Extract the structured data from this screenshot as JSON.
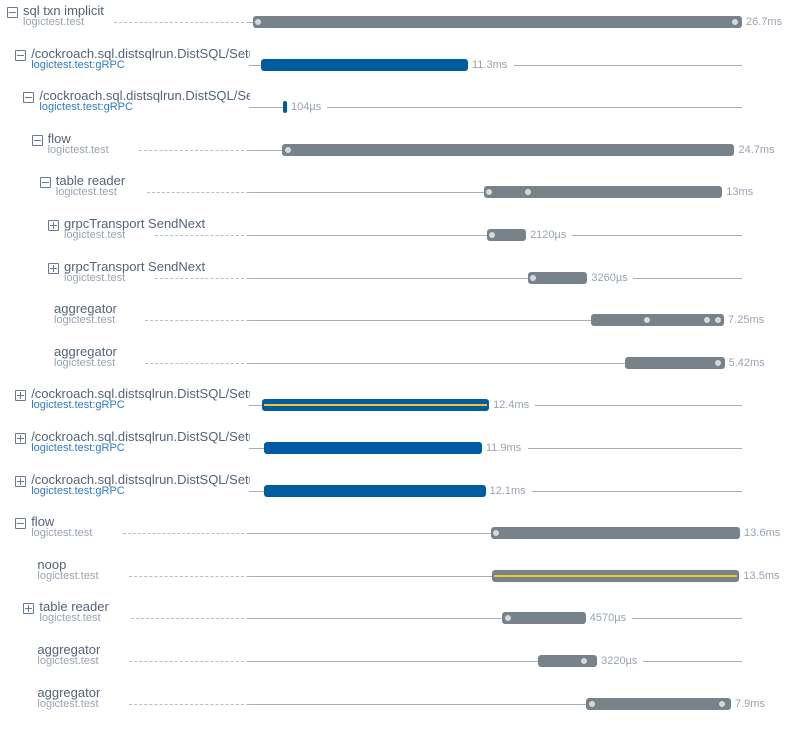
{
  "trace": {
    "total_ms": 26.7,
    "colors": {
      "grey": "#78828b",
      "blue": "#005ba1",
      "yellow": "#f2c41c"
    },
    "spans": [
      {
        "depth": 0,
        "toggle": "collapse",
        "title": "sql txn implicit",
        "subtitle": "logictest.test",
        "sub_style": "grey",
        "start_ms": 0,
        "duration_ms": 26.7,
        "label": "26.7ms",
        "color": "grey",
        "marks_ms": [
          0.3,
          26.3
        ]
      },
      {
        "depth": 1,
        "toggle": "collapse",
        "title": "/cockroach.sql.distsqlrun.DistSQL/SetupFlow",
        "subtitle": "logictest.test:gRPC",
        "sub_style": "blue",
        "start_ms": 0.44,
        "duration_ms": 11.3,
        "label": "11.3ms",
        "color": "blue",
        "marks_ms": []
      },
      {
        "depth": 2,
        "toggle": "collapse",
        "title": "/cockroach.sql.distsqlrun.DistSQL/SetupFlow",
        "subtitle": "logictest.test:gRPC",
        "sub_style": "blue",
        "start_ms": 1.64,
        "duration_ms": 0.104,
        "label": "104µs",
        "color": "blue",
        "marks_ms": []
      },
      {
        "depth": 3,
        "toggle": "collapse",
        "title": "flow",
        "subtitle": "logictest.test",
        "sub_style": "grey",
        "start_ms": 1.59,
        "duration_ms": 24.7,
        "label": "24.7ms",
        "color": "grey",
        "marks_ms": [
          1.9
        ]
      },
      {
        "depth": 4,
        "toggle": "collapse",
        "title": "table reader",
        "subtitle": "logictest.test",
        "sub_style": "grey",
        "start_ms": 12.62,
        "duration_ms": 13,
        "label": "13ms",
        "color": "grey",
        "marks_ms": [
          12.9,
          15.0
        ]
      },
      {
        "depth": 5,
        "toggle": "expand",
        "title": "grpcTransport SendNext",
        "subtitle": "logictest.test",
        "sub_style": "grey",
        "start_ms": 12.79,
        "duration_ms": 2.12,
        "label": "2120µs",
        "color": "grey",
        "marks_ms": [
          13.0
        ]
      },
      {
        "depth": 5,
        "toggle": "expand",
        "title": "grpcTransport SendNext",
        "subtitle": "logictest.test",
        "sub_style": "grey",
        "start_ms": 15.0,
        "duration_ms": 3.26,
        "label": "3260µs",
        "color": "grey",
        "marks_ms": [
          15.2
        ]
      },
      {
        "depth": 5,
        "toggle": "none",
        "title": "aggregator",
        "subtitle": "logictest.test",
        "sub_style": "grey",
        "start_ms": 18.47,
        "duration_ms": 7.25,
        "label": "7.25ms",
        "color": "grey",
        "marks_ms": [
          21.5,
          24.8,
          25.4
        ]
      },
      {
        "depth": 5,
        "toggle": "none",
        "title": "aggregator",
        "subtitle": "logictest.test",
        "sub_style": "grey",
        "start_ms": 20.33,
        "duration_ms": 5.42,
        "label": "5.42ms",
        "color": "grey",
        "marks_ms": [
          25.4
        ]
      },
      {
        "depth": 1,
        "toggle": "expand",
        "title": "/cockroach.sql.distsqlrun.DistSQL/SetupFlow",
        "subtitle": "logictest.test:gRPC",
        "sub_style": "blue",
        "start_ms": 0.49,
        "duration_ms": 12.4,
        "label": "12.4ms",
        "color": "blue",
        "stripe": true,
        "marks_ms": []
      },
      {
        "depth": 1,
        "toggle": "expand",
        "title": "/cockroach.sql.distsqlrun.DistSQL/SetupFlow",
        "subtitle": "logictest.test:gRPC",
        "sub_style": "blue",
        "start_ms": 0.6,
        "duration_ms": 11.9,
        "label": "11.9ms",
        "color": "blue",
        "marks_ms": []
      },
      {
        "depth": 1,
        "toggle": "expand",
        "title": "/cockroach.sql.distsqlrun.DistSQL/SetupFlow",
        "subtitle": "logictest.test:gRPC",
        "sub_style": "blue",
        "start_ms": 0.6,
        "duration_ms": 12.1,
        "label": "12.1ms",
        "color": "blue",
        "marks_ms": []
      },
      {
        "depth": 1,
        "toggle": "collapse",
        "title": "flow",
        "subtitle": "logictest.test",
        "sub_style": "grey",
        "start_ms": 13.0,
        "duration_ms": 13.6,
        "label": "13.6ms",
        "color": "grey",
        "marks_ms": [
          13.2
        ]
      },
      {
        "depth": 2,
        "toggle": "none",
        "title": "noop",
        "subtitle": "logictest.test",
        "sub_style": "grey",
        "start_ms": 13.06,
        "duration_ms": 13.5,
        "label": "13.5ms",
        "color": "grey",
        "stripe": true,
        "marks_ms": []
      },
      {
        "depth": 2,
        "toggle": "expand",
        "title": "table reader",
        "subtitle": "logictest.test",
        "sub_style": "grey",
        "start_ms": 13.6,
        "duration_ms": 4.57,
        "label": "4570µs",
        "color": "grey",
        "marks_ms": [
          13.9
        ]
      },
      {
        "depth": 2,
        "toggle": "none",
        "title": "aggregator",
        "subtitle": "logictest.test",
        "sub_style": "grey",
        "start_ms": 15.57,
        "duration_ms": 3.22,
        "label": "3220µs",
        "color": "grey",
        "marks_ms": [
          18.1
        ]
      },
      {
        "depth": 2,
        "toggle": "none",
        "title": "aggregator",
        "subtitle": "logictest.test",
        "sub_style": "grey",
        "start_ms": 18.2,
        "duration_ms": 7.9,
        "label": "7.9ms",
        "color": "grey",
        "marks_ms": [
          18.5,
          25.6
        ]
      }
    ]
  }
}
